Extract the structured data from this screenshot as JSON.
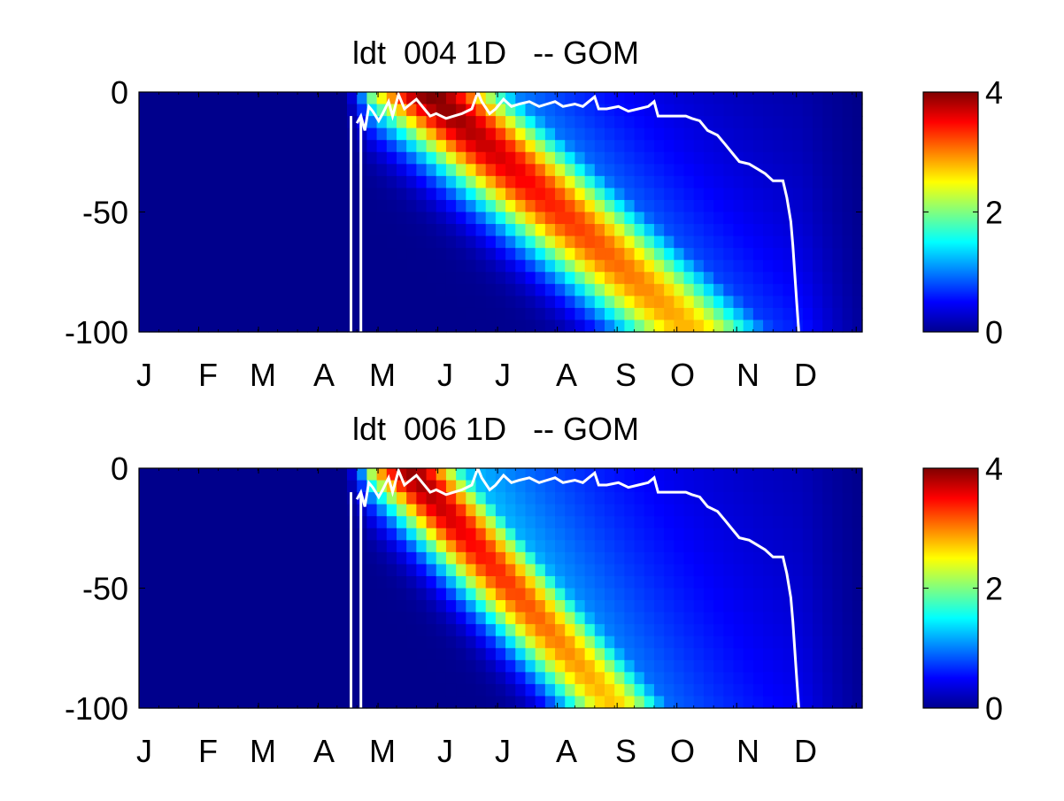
{
  "chart_data": [
    {
      "type": "heatmap",
      "title": "ldt  004 1D   -- GOM",
      "x_tick_labels": [
        "J",
        "F",
        "M",
        "A",
        "M",
        "J",
        "J",
        "A",
        "S",
        "O",
        "N",
        "D"
      ],
      "y_tick_labels": [
        "0",
        "-50",
        "-100"
      ],
      "y_ticks": [
        0,
        -50,
        -100
      ],
      "ylim": [
        -100,
        0
      ],
      "xlim_days": [
        0,
        365
      ],
      "colorbar": {
        "range": [
          0,
          4
        ],
        "tick_labels": [
          "0",
          "2",
          "4"
        ],
        "ticks": [
          0,
          2,
          4
        ],
        "colormap": "jet"
      },
      "bloom": {
        "peak_value": 4.0,
        "start_day": 110,
        "peak_day": 145,
        "slope_m_per_day": 0.75,
        "width_days": 26,
        "decay_days": 70
      },
      "mixed_layer_depth_line": {
        "color": "#ffffff",
        "points": [
          [
            110,
            -13
          ],
          [
            112,
            -10
          ],
          [
            114,
            -16
          ],
          [
            116,
            -6
          ],
          [
            118,
            -8
          ],
          [
            121,
            -12
          ],
          [
            123,
            -9
          ],
          [
            126,
            -4
          ],
          [
            128,
            -10
          ],
          [
            131,
            -1
          ],
          [
            134,
            -7
          ],
          [
            137,
            -5
          ],
          [
            140,
            -3
          ],
          [
            143,
            -6
          ],
          [
            147,
            -10
          ],
          [
            150,
            -9
          ],
          [
            155,
            -11
          ],
          [
            159,
            -10
          ],
          [
            163,
            -9
          ],
          [
            168,
            -7
          ],
          [
            171,
            0
          ],
          [
            173,
            -4
          ],
          [
            177,
            -9
          ],
          [
            180,
            -7
          ],
          [
            184,
            -3
          ],
          [
            188,
            -6
          ],
          [
            192,
            -5
          ],
          [
            197,
            -4
          ],
          [
            202,
            -6
          ],
          [
            206,
            -5
          ],
          [
            210,
            -4
          ],
          [
            214,
            -6
          ],
          [
            220,
            -5
          ],
          [
            224,
            -6
          ],
          [
            227,
            -4
          ],
          [
            230,
            -2
          ],
          [
            232,
            -7
          ],
          [
            236,
            -7
          ],
          [
            242,
            -6
          ],
          [
            247,
            -8
          ],
          [
            252,
            -7
          ],
          [
            257,
            -6
          ],
          [
            260,
            -4
          ],
          [
            262,
            -10
          ],
          [
            266,
            -10
          ],
          [
            271,
            -10
          ],
          [
            276,
            -10
          ],
          [
            279,
            -11
          ],
          [
            283,
            -12
          ],
          [
            287,
            -16
          ],
          [
            292,
            -18
          ],
          [
            296,
            -22
          ],
          [
            300,
            -26
          ],
          [
            303,
            -29
          ],
          [
            308,
            -30
          ],
          [
            312,
            -32
          ],
          [
            316,
            -34
          ],
          [
            320,
            -37
          ],
          [
            325,
            -37
          ],
          [
            327,
            -44
          ],
          [
            329,
            -54
          ],
          [
            330,
            -64
          ],
          [
            331,
            -76
          ],
          [
            332,
            -88
          ],
          [
            333,
            -100
          ]
        ]
      },
      "ice_lines_days": [
        107,
        112
      ]
    },
    {
      "type": "heatmap",
      "title": "ldt  006 1D   -- GOM",
      "x_tick_labels": [
        "J",
        "F",
        "M",
        "A",
        "M",
        "J",
        "J",
        "A",
        "S",
        "O",
        "N",
        "D"
      ],
      "y_tick_labels": [
        "0",
        "-50",
        "-100"
      ],
      "y_ticks": [
        0,
        -50,
        -100
      ],
      "ylim": [
        -100,
        0
      ],
      "xlim_days": [
        0,
        365
      ],
      "colorbar": {
        "range": [
          0,
          4
        ],
        "tick_labels": [
          "0",
          "2",
          "4"
        ],
        "ticks": [
          0,
          2,
          4
        ],
        "colormap": "jet"
      },
      "bloom": {
        "peak_value": 3.9,
        "start_day": 110,
        "peak_day": 135,
        "slope_m_per_day": 0.95,
        "width_days": 19,
        "decay_days": 85
      },
      "mixed_layer_depth_line": {
        "color": "#ffffff",
        "points": [
          [
            110,
            -13
          ],
          [
            112,
            -10
          ],
          [
            114,
            -16
          ],
          [
            116,
            -6
          ],
          [
            118,
            -8
          ],
          [
            121,
            -12
          ],
          [
            123,
            -9
          ],
          [
            126,
            -4
          ],
          [
            128,
            -10
          ],
          [
            131,
            -1
          ],
          [
            134,
            -7
          ],
          [
            137,
            -5
          ],
          [
            140,
            -3
          ],
          [
            143,
            -6
          ],
          [
            147,
            -10
          ],
          [
            150,
            -9
          ],
          [
            155,
            -11
          ],
          [
            159,
            -10
          ],
          [
            163,
            -9
          ],
          [
            168,
            -7
          ],
          [
            171,
            0
          ],
          [
            173,
            -4
          ],
          [
            177,
            -9
          ],
          [
            180,
            -7
          ],
          [
            184,
            -3
          ],
          [
            188,
            -6
          ],
          [
            192,
            -5
          ],
          [
            197,
            -4
          ],
          [
            202,
            -6
          ],
          [
            206,
            -5
          ],
          [
            210,
            -4
          ],
          [
            214,
            -6
          ],
          [
            220,
            -5
          ],
          [
            224,
            -6
          ],
          [
            227,
            -4
          ],
          [
            230,
            -2
          ],
          [
            232,
            -7
          ],
          [
            236,
            -7
          ],
          [
            242,
            -6
          ],
          [
            247,
            -8
          ],
          [
            252,
            -7
          ],
          [
            257,
            -6
          ],
          [
            260,
            -4
          ],
          [
            262,
            -10
          ],
          [
            266,
            -10
          ],
          [
            271,
            -10
          ],
          [
            276,
            -10
          ],
          [
            279,
            -11
          ],
          [
            283,
            -12
          ],
          [
            287,
            -16
          ],
          [
            292,
            -18
          ],
          [
            296,
            -22
          ],
          [
            300,
            -26
          ],
          [
            303,
            -29
          ],
          [
            308,
            -30
          ],
          [
            312,
            -32
          ],
          [
            316,
            -34
          ],
          [
            320,
            -37
          ],
          [
            325,
            -37
          ],
          [
            327,
            -44
          ],
          [
            329,
            -54
          ],
          [
            330,
            -64
          ],
          [
            331,
            -76
          ],
          [
            332,
            -88
          ],
          [
            333,
            -100
          ]
        ]
      },
      "ice_lines_days": [
        107,
        112
      ]
    }
  ]
}
